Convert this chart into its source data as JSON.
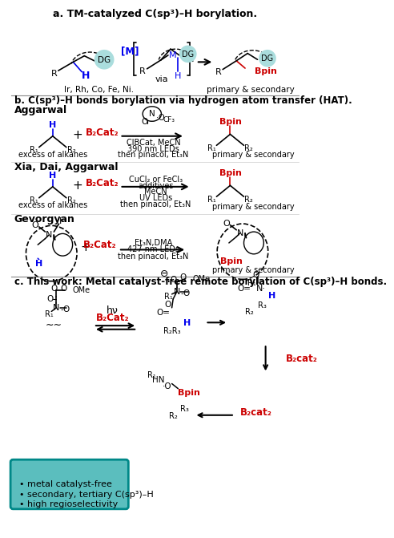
{
  "title_a": "a. TM-catalyzed C(sp³)–H borylation.",
  "title_b": "b. C(sp³)–H bonds borylation via hydrogen atom transfer (HAT).",
  "title_c": "c. This work: Metal catalyst-free remote borylation of C(sp³)–H bonds.",
  "label_aggarwal": "Aggarwal",
  "label_xia": "Xia, Dai, Aggarwal",
  "label_gevorgyan": "Gevorgyan",
  "cond_aggarwal_1": "ClBCat, MeCN",
  "cond_aggarwal_2": "390 nm LEDs",
  "cond_aggarwal_3": "then pinacol, Et₃N",
  "cond_xia_1": "CuCl₂ or FeCl₃",
  "cond_xia_2": "additives",
  "cond_xia_3": "MeCN",
  "cond_xia_4": "UV LEDs",
  "cond_xia_5": "then pinacol, Et₃N",
  "cond_gev_1": "Et₃N,DMA",
  "cond_gev_2": "427 nm LEDs",
  "cond_gev_3": "then pinacol, Et₃N",
  "primary_secondary": "primary & secondary",
  "excess_alkanes": "excess of alkanes",
  "via": "via",
  "ir_rh": "Ir, Rh, Co, Fe, Ni.",
  "metal_free_1": "• metal catalyst-free",
  "metal_free_2": "• secondary, tertiary C(sp³)–H",
  "metal_free_3": "• high regioselectivity",
  "color_blue": "#0000EE",
  "color_red": "#CC0000",
  "color_black": "#000000",
  "color_bg": "#FFFFFF",
  "color_dg_fill": "#AADDDD",
  "color_box_bg": "#5BBEBE",
  "color_box_border": "#008888"
}
